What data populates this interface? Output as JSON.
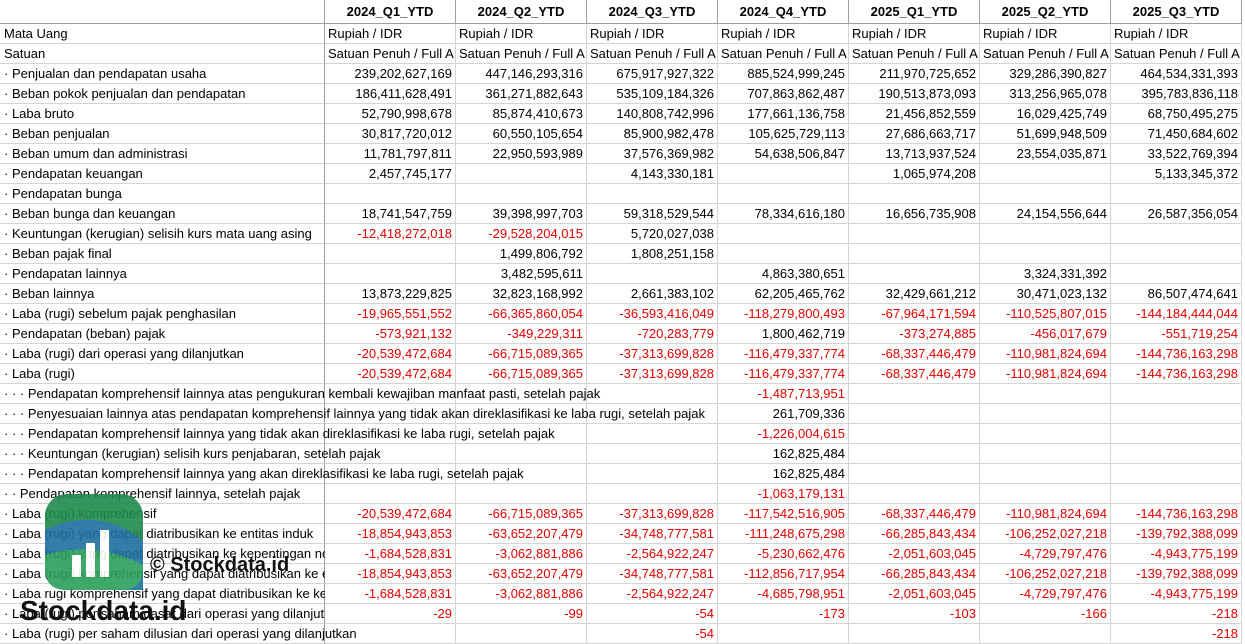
{
  "table": {
    "columns": [
      "2024_Q1_YTD",
      "2024_Q2_YTD",
      "2024_Q3_YTD",
      "2024_Q4_YTD",
      "2025_Q1_YTD",
      "2025_Q2_YTD",
      "2025_Q3_YTD"
    ],
    "rows": [
      {
        "label": "Mata Uang",
        "cells": [
          "Rupiah / IDR",
          "Rupiah / IDR",
          "Rupiah / IDR",
          "Rupiah / IDR",
          "Rupiah / IDR",
          "Rupiah / IDR",
          "Rupiah / IDR"
        ]
      },
      {
        "label": "Satuan",
        "cells": [
          "Satuan Penuh / Full A",
          "Satuan Penuh / Full A",
          "Satuan Penuh / Full A",
          "Satuan Penuh / Full A",
          "Satuan Penuh / Full A",
          "Satuan Penuh / Full A",
          "Satuan Penuh / Full A"
        ]
      },
      {
        "label": "· Penjualan dan pendapatan usaha",
        "cells": [
          "239,202,627,169",
          "447,146,293,316",
          "675,917,927,322",
          "885,524,999,245",
          "211,970,725,652",
          "329,286,390,827",
          "464,534,331,393"
        ]
      },
      {
        "label": "· Beban pokok penjualan dan pendapatan",
        "cells": [
          "186,411,628,491",
          "361,271,882,643",
          "535,109,184,326",
          "707,863,862,487",
          "190,513,873,093",
          "313,256,965,078",
          "395,783,836,118"
        ]
      },
      {
        "label": "· Laba bruto",
        "cells": [
          "52,790,998,678",
          "85,874,410,673",
          "140,808,742,996",
          "177,661,136,758",
          "21,456,852,559",
          "16,029,425,749",
          "68,750,495,275"
        ]
      },
      {
        "label": "· Beban penjualan",
        "cells": [
          "30,817,720,012",
          "60,550,105,654",
          "85,900,982,478",
          "105,625,729,113",
          "27,686,663,717",
          "51,699,948,509",
          "71,450,684,602"
        ]
      },
      {
        "label": "· Beban umum dan administrasi",
        "cells": [
          "11,781,797,811",
          "22,950,593,989",
          "37,576,369,982",
          "54,638,506,847",
          "13,713,937,524",
          "23,554,035,871",
          "33,522,769,394"
        ]
      },
      {
        "label": "· Pendapatan keuangan",
        "cells": [
          "2,457,745,177",
          null,
          "4,143,330,181",
          null,
          "1,065,974,208",
          null,
          "5,133,345,372"
        ]
      },
      {
        "label": "· Pendapatan bunga",
        "cells": [
          null,
          null,
          null,
          null,
          null,
          null,
          null
        ]
      },
      {
        "label": "· Beban bunga dan keuangan",
        "cells": [
          "18,741,547,759",
          "39,398,997,703",
          "59,318,529,544",
          "78,334,616,180",
          "16,656,735,908",
          "24,154,556,644",
          "26,587,356,054"
        ]
      },
      {
        "label": "· Keuntungan (kerugian) selisih kurs mata uang asing",
        "cells": [
          "-12,418,272,018",
          "-29,528,204,015",
          "5,720,027,038",
          null,
          null,
          null,
          null
        ]
      },
      {
        "label": "· Beban pajak final",
        "cells": [
          null,
          "1,499,806,792",
          "1,808,251,158",
          null,
          null,
          null,
          null
        ]
      },
      {
        "label": "· Pendapatan lainnya",
        "cells": [
          null,
          "3,482,595,611",
          null,
          "4,863,380,651",
          null,
          "3,324,331,392",
          null
        ]
      },
      {
        "label": "· Beban lainnya",
        "cells": [
          "13,873,229,825",
          "32,823,168,992",
          "2,661,383,102",
          "62,205,465,762",
          "32,429,661,212",
          "30,471,023,132",
          "86,507,474,641"
        ]
      },
      {
        "label": "· Laba (rugi) sebelum pajak penghasilan",
        "cells": [
          "-19,965,551,552",
          "-66,365,860,054",
          "-36,593,416,049",
          "-118,279,800,493",
          "-67,964,171,594",
          "-110,525,807,015",
          "-144,184,444,044"
        ]
      },
      {
        "label": "· Pendapatan (beban) pajak",
        "cells": [
          "-573,921,132",
          "-349,229,311",
          "-720,283,779",
          "1,800,462,719",
          "-373,274,885",
          "-456,017,679",
          "-551,719,254"
        ]
      },
      {
        "label": "· Laba (rugi) dari operasi yang dilanjutkan",
        "cells": [
          "-20,539,472,684",
          "-66,715,089,365",
          "-37,313,699,828",
          "-116,479,337,774",
          "-68,337,446,479",
          "-110,981,824,694",
          "-144,736,163,298"
        ]
      },
      {
        "label": "· Laba (rugi)",
        "cells": [
          "-20,539,472,684",
          "-66,715,089,365",
          "-37,313,699,828",
          "-116,479,337,774",
          "-68,337,446,479",
          "-110,981,824,694",
          "-144,736,163,298"
        ]
      },
      {
        "label": "· · · Pendapatan komprehensif lainnya atas pengukuran kembali kewajiban manfaat pasti, setelah pajak",
        "cells": [
          null,
          null,
          null,
          "-1,487,713,951",
          null,
          null,
          null
        ]
      },
      {
        "label": "· · · Penyesuaian lainnya atas pendapatan komprehensif lainnya yang tidak akan direklasifikasi ke laba rugi, setelah pajak",
        "cells": [
          null,
          null,
          null,
          "261,709,336",
          null,
          null,
          null
        ]
      },
      {
        "label": "· · · Pendapatan komprehensif lainnya yang tidak akan direklasifikasi ke laba rugi, setelah pajak",
        "cells": [
          null,
          null,
          null,
          "-1,226,004,615",
          null,
          null,
          null
        ]
      },
      {
        "label": "· · · Keuntungan (kerugian) selisih kurs penjabaran, setelah pajak",
        "cells": [
          null,
          null,
          null,
          "162,825,484",
          null,
          null,
          null
        ]
      },
      {
        "label": "· · · Pendapatan komprehensif lainnya yang akan direklasifikasi ke laba rugi, setelah pajak",
        "cells": [
          null,
          null,
          null,
          "162,825,484",
          null,
          null,
          null
        ]
      },
      {
        "label": "· · Pendapatan komprehensif lainnya, setelah pajak",
        "cells": [
          null,
          null,
          null,
          "-1,063,179,131",
          null,
          null,
          null
        ]
      },
      {
        "label": "· Laba (rugi) komprehensif",
        "cells": [
          "-20,539,472,684",
          "-66,715,089,365",
          "-37,313,699,828",
          "-117,542,516,905",
          "-68,337,446,479",
          "-110,981,824,694",
          "-144,736,163,298"
        ]
      },
      {
        "label": "· Laba (rugi) yang dapat diatribusikan ke entitas induk",
        "cells": [
          "-18,854,943,853",
          "-63,652,207,479",
          "-34,748,777,581",
          "-111,248,675,298",
          "-66,285,843,434",
          "-106,252,027,218",
          "-139,792,388,099"
        ]
      },
      {
        "label": "· Laba (rugi) yang dapat diatribusikan ke kepentingan non-pengendali",
        "cells": [
          "-1,684,528,831",
          "-3,062,881,886",
          "-2,564,922,247",
          "-5,230,662,476",
          "-2,051,603,045",
          "-4,729,797,476",
          "-4,943,775,199"
        ]
      },
      {
        "label": "· Laba (rugi) komprehensif yang dapat diatribusikan ke entitas induk",
        "cells": [
          "-18,854,943,853",
          "-63,652,207,479",
          "-34,748,777,581",
          "-112,856,717,954",
          "-66,285,843,434",
          "-106,252,027,218",
          "-139,792,388,099"
        ]
      },
      {
        "label": "· Laba rugi komprehensif yang dapat diatribusikan ke kepentingan non-pengendali",
        "cells": [
          "-1,684,528,831",
          "-3,062,881,886",
          "-2,564,922,247",
          "-4,685,798,951",
          "-2,051,603,045",
          "-4,729,797,476",
          "-4,943,775,199"
        ]
      },
      {
        "label": "· Laba (rugi) per saham dasar dari operasi yang dilanjutkan",
        "cells": [
          "-29",
          "-99",
          "-54",
          "-173",
          "-103",
          "-166",
          "-218"
        ]
      },
      {
        "label": "· Laba (rugi) per saham dilusian dari operasi yang dilanjutkan",
        "cells": [
          null,
          null,
          "-54",
          null,
          null,
          null,
          "-218"
        ]
      }
    ]
  },
  "watermark": {
    "caption": "© Stockdata.id",
    "brand": "Stockdata.id"
  }
}
